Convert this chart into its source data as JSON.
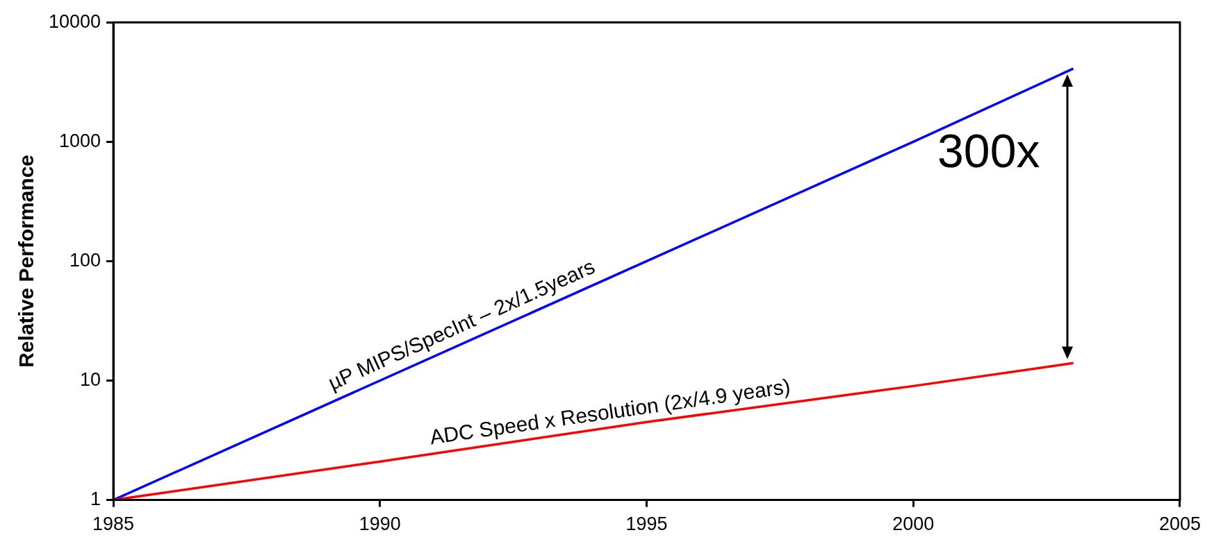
{
  "chart_data": {
    "type": "line",
    "ylabel": "Relative Performance",
    "x": [
      1985,
      1990,
      1995,
      2000,
      2003
    ],
    "series": [
      {
        "name": "µP MIPS/SpecInt – 2x/1.5years",
        "color": "#0000ff",
        "values": [
          1,
          10,
          100,
          1000,
          4100
        ]
      },
      {
        "name": "ADC Speed x Resolution (2x/4.9 years)",
        "color": "#ff0000",
        "values": [
          1,
          2.1,
          4.5,
          9,
          14
        ]
      }
    ],
    "xlim": [
      1985,
      2005
    ],
    "xticks": [
      1985,
      1990,
      1995,
      2000,
      2005
    ],
    "ylim": [
      1,
      10000
    ],
    "yticks": [
      1,
      10,
      100,
      1000,
      10000
    ],
    "log": "y",
    "grid": false,
    "legend": false,
    "marker": "none",
    "line_style": "solid",
    "annotations": [
      "300x"
    ]
  }
}
